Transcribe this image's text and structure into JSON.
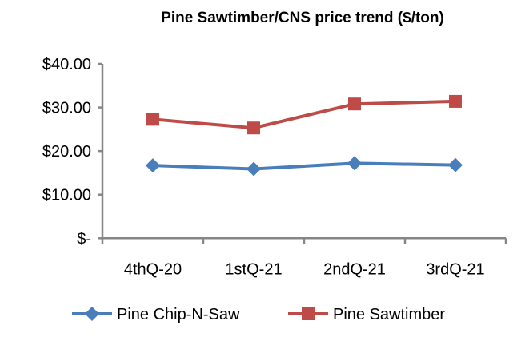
{
  "chart_data": {
    "type": "line",
    "title": "Pine Sawtimber/CNS price trend ($/ton)",
    "categories": [
      "4thQ-20",
      "1stQ-21",
      "2ndQ-21",
      "3rdQ-21"
    ],
    "series": [
      {
        "name": "Pine Chip-N-Saw",
        "values": [
          16.7,
          15.9,
          17.2,
          16.8
        ],
        "color": "#4A7EBB",
        "marker": "diamond"
      },
      {
        "name": "Pine Sawtimber",
        "values": [
          27.3,
          25.3,
          30.8,
          31.4
        ],
        "color": "#BE4B48",
        "marker": "square"
      }
    ],
    "ylim": [
      0,
      40
    ],
    "yticks": [
      0,
      10,
      20,
      30,
      40
    ],
    "ytick_labels": [
      "$-",
      "$10.00",
      "$20.00",
      "$30.00",
      "$40.00"
    ],
    "grid": false,
    "legend": "bottom"
  }
}
